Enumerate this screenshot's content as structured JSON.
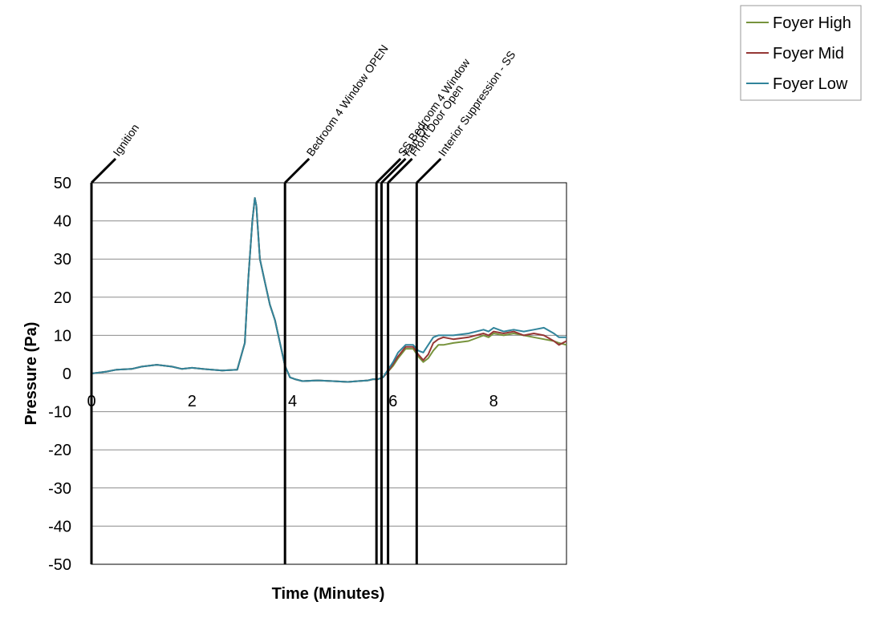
{
  "chart_data": {
    "type": "line",
    "title": "",
    "xlabel": "Time (Minutes)",
    "ylabel": "Pressure (Pa)",
    "xlim": [
      0,
      9.45
    ],
    "ylim": [
      -50,
      50
    ],
    "x_ticks": [
      "0",
      "2",
      "4",
      "6",
      "8"
    ],
    "y_ticks": [
      "50",
      "40",
      "30",
      "20",
      "10",
      "0",
      "-10",
      "-20",
      "-30",
      "-40",
      "-50"
    ],
    "grid": "horizontal",
    "legend_position": "top-right",
    "events": [
      {
        "label": "Ignition",
        "x": 0
      },
      {
        "label": "Bedroom 4 Window OPEN",
        "x": 3.85
      },
      {
        "label": "SS Bedroom 4 Window",
        "x": 5.67
      },
      {
        "label": "Fan On",
        "x": 5.77
      },
      {
        "label": "Front Door Open",
        "x": 5.9
      },
      {
        "label": "Interior Suppression - SS",
        "x": 6.47
      }
    ],
    "series": [
      {
        "name": "Foyer High",
        "color": "#77933c",
        "x": [
          0,
          0.3,
          0.5,
          0.8,
          1.0,
          1.3,
          1.6,
          1.8,
          2.0,
          2.3,
          2.6,
          2.9,
          3.05,
          3.12,
          3.2,
          3.25,
          3.28,
          3.3,
          3.35,
          3.45,
          3.55,
          3.65,
          3.75,
          3.85,
          3.95,
          4.05,
          4.2,
          4.5,
          4.8,
          5.1,
          5.3,
          5.5,
          5.6,
          5.7,
          5.8,
          5.9,
          6.0,
          6.1,
          6.25,
          6.4,
          6.5,
          6.6,
          6.7,
          6.8,
          6.9,
          7.0,
          7.2,
          7.5,
          7.8,
          7.9,
          8.0,
          8.2,
          8.4,
          8.6,
          8.8,
          9.0,
          9.2,
          9.3,
          9.45
        ],
        "values": [
          0,
          0.5,
          1,
          1.2,
          1.8,
          2.3,
          1.8,
          1.2,
          1.5,
          1.1,
          0.8,
          1.0,
          8,
          25,
          40,
          46,
          44,
          40,
          30,
          24,
          18,
          14,
          8,
          2,
          -1,
          -1.5,
          -2,
          -1.8,
          -2,
          -2.2,
          -2,
          -1.8,
          -1.5,
          -1.5,
          -1,
          0.5,
          2,
          4,
          6.5,
          6.5,
          4.5,
          3,
          4,
          6,
          7.5,
          7.5,
          8,
          8.5,
          10,
          9.5,
          10.5,
          10,
          10.5,
          10,
          9.5,
          9,
          8.5,
          8,
          7.5
        ]
      },
      {
        "name": "Foyer Mid",
        "color": "#953735",
        "x": [
          0,
          0.3,
          0.5,
          0.8,
          1.0,
          1.3,
          1.6,
          1.8,
          2.0,
          2.3,
          2.6,
          2.9,
          3.05,
          3.12,
          3.2,
          3.25,
          3.28,
          3.3,
          3.35,
          3.45,
          3.55,
          3.65,
          3.75,
          3.85,
          3.95,
          4.05,
          4.2,
          4.5,
          4.8,
          5.1,
          5.3,
          5.5,
          5.6,
          5.7,
          5.8,
          5.9,
          6.0,
          6.1,
          6.25,
          6.4,
          6.5,
          6.6,
          6.7,
          6.8,
          6.9,
          7.0,
          7.2,
          7.5,
          7.8,
          7.9,
          8.0,
          8.2,
          8.4,
          8.6,
          8.8,
          9.0,
          9.2,
          9.3,
          9.45
        ],
        "values": [
          0,
          0.5,
          1,
          1.2,
          1.8,
          2.3,
          1.8,
          1.2,
          1.5,
          1.1,
          0.8,
          1.0,
          8,
          25,
          40,
          46,
          44,
          40,
          30,
          24,
          18,
          14,
          8,
          2,
          -1,
          -1.5,
          -2,
          -1.8,
          -2,
          -2.2,
          -2,
          -1.8,
          -1.5,
          -1.5,
          -1,
          0.5,
          2.5,
          4.5,
          7,
          7,
          5,
          3.5,
          5,
          8,
          9,
          9.5,
          9,
          9.5,
          10.5,
          10,
          11,
          10.5,
          11,
          10,
          10.5,
          10,
          8.5,
          7.5,
          8.5
        ]
      },
      {
        "name": "Foyer Low",
        "color": "#31849b",
        "x": [
          0,
          0.3,
          0.5,
          0.8,
          1.0,
          1.3,
          1.6,
          1.8,
          2.0,
          2.3,
          2.6,
          2.9,
          3.05,
          3.12,
          3.2,
          3.25,
          3.28,
          3.3,
          3.35,
          3.45,
          3.55,
          3.65,
          3.75,
          3.85,
          3.95,
          4.05,
          4.2,
          4.5,
          4.8,
          5.1,
          5.3,
          5.5,
          5.6,
          5.7,
          5.8,
          5.9,
          6.0,
          6.1,
          6.25,
          6.4,
          6.5,
          6.6,
          6.7,
          6.8,
          6.9,
          7.0,
          7.2,
          7.5,
          7.8,
          7.9,
          8.0,
          8.2,
          8.4,
          8.6,
          8.8,
          9.0,
          9.2,
          9.3,
          9.45
        ],
        "values": [
          0,
          0.5,
          1,
          1.2,
          1.8,
          2.3,
          1.8,
          1.2,
          1.5,
          1.1,
          0.8,
          1.0,
          8,
          25,
          40,
          46,
          44,
          40,
          30,
          24,
          18,
          14,
          8,
          2,
          -1,
          -1.5,
          -2,
          -1.8,
          -2,
          -2.2,
          -2,
          -1.8,
          -1.5,
          -1.5,
          -1,
          1,
          3,
          5.5,
          7.5,
          7.5,
          6,
          5.5,
          7.5,
          9.5,
          10,
          10,
          10,
          10.5,
          11.5,
          11,
          12,
          11,
          11.5,
          11,
          11.5,
          12,
          10.5,
          9.5,
          9.5
        ]
      }
    ]
  }
}
